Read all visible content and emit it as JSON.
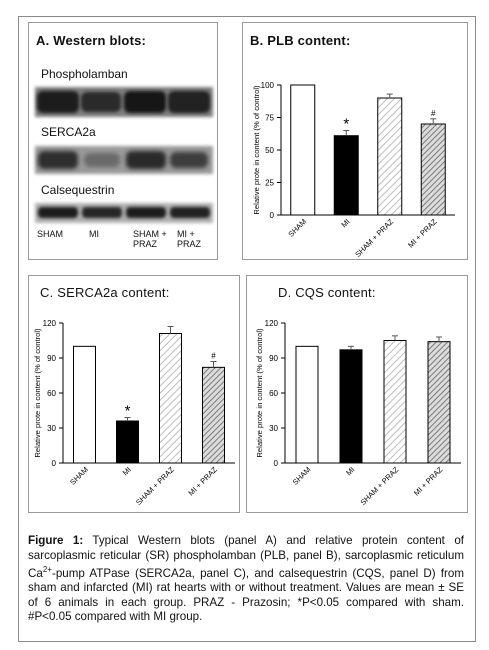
{
  "panelA": {
    "title": "A.  Western blots:",
    "proteins": [
      "Phospholamban",
      "SERCA2a",
      "Calsequestrin"
    ],
    "lanes": [
      "SHAM",
      "MI",
      "SHAM +\nPRAZ",
      "MI +\nPRAZ"
    ]
  },
  "chart_data": [
    {
      "type": "bar",
      "title": "B.  PLB content:",
      "ylabel": "Relative prote in content (% of control)",
      "ylim": [
        0,
        100
      ],
      "yticks": [
        0,
        25,
        50,
        75,
        100
      ],
      "categories": [
        "SHAM",
        "MI",
        "SHAM + PRAZ",
        "MI + PRAZ"
      ],
      "values": [
        100,
        61,
        90,
        70
      ],
      "errors": [
        0,
        4,
        3,
        4
      ],
      "annotations": [
        "",
        "*",
        "",
        "#"
      ],
      "fills": [
        "white",
        "black",
        "hatch-light",
        "hatch-dark"
      ]
    },
    {
      "type": "bar",
      "title": "C. SERCA2a content:",
      "ylabel": "Relative prote in content (% of control)",
      "ylim": [
        0,
        120
      ],
      "yticks": [
        0,
        30,
        60,
        90,
        120
      ],
      "categories": [
        "SHAM",
        "MI",
        "SHAM + PRAZ",
        "MI + PRAZ"
      ],
      "values": [
        100,
        36,
        111,
        82
      ],
      "errors": [
        0,
        3,
        6,
        5
      ],
      "annotations": [
        "",
        "*",
        "",
        "#"
      ],
      "fills": [
        "white",
        "black",
        "hatch-light",
        "hatch-dark"
      ]
    },
    {
      "type": "bar",
      "title": "D.  CQS content:",
      "ylabel": "Relative prote in content (% of control)",
      "ylim": [
        0,
        120
      ],
      "yticks": [
        0,
        30,
        60,
        90,
        120
      ],
      "categories": [
        "SHAM",
        "MI",
        "SHAM + PRAZ",
        "MI + PRAZ"
      ],
      "values": [
        100,
        97,
        105,
        104
      ],
      "errors": [
        0,
        3,
        4,
        4
      ],
      "annotations": [
        "",
        "",
        "",
        ""
      ],
      "fills": [
        "white",
        "black",
        "hatch-light",
        "hatch-dark"
      ]
    }
  ],
  "caption": {
    "label": "Figure 1:",
    "text_part1": " Typical Western blots (panel A) and relative protein content of sarcoplasmic reticular (SR) phospholamban (PLB, panel B), sarcoplasmic reticulum Ca",
    "superscript": "2+",
    "text_part2": "-pump ATPase (SERCA2a, panel C), and calsequestrin (CQS, panel D) from sham and infarcted (MI) rat hearts with or without treatment. Values are mean ± SE of 6 animals in each group.  PRAZ - Prazosin; *P<0.05 compared with sham. #P<0.05 compared with MI group."
  },
  "colors": {
    "border": "#9a9a9a",
    "bar_black": "#000000",
    "hatch_light": "#bdbdbd",
    "hatch_dark": "#7a7a7a"
  }
}
